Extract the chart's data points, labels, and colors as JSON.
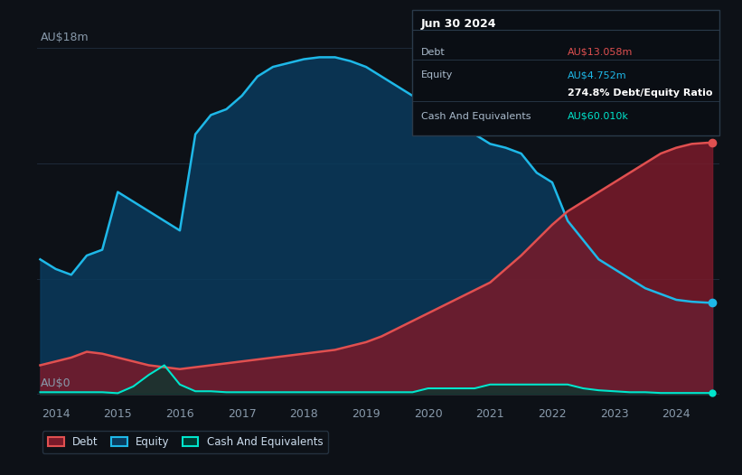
{
  "background_color": "#0d1117",
  "plot_bg_color": "#0d1117",
  "grid_color": "#1e2a3a",
  "title": "Jun 30 2024",
  "ylabel": "AU$18m",
  "y0label": "AU$0",
  "xlim": [
    2013.7,
    2024.7
  ],
  "ylim": [
    -0.5,
    18.5
  ],
  "xticks": [
    2014,
    2015,
    2016,
    2017,
    2018,
    2019,
    2020,
    2021,
    2022,
    2023,
    2024
  ],
  "debt_color": "#e05050",
  "equity_color": "#1eb8e8",
  "cash_color": "#00e5cc",
  "debt_fill": "#7a1a2a",
  "equity_fill": "#0a3a5c",
  "cash_fill": "#003a30",
  "tooltip_bg": "#0a0e14",
  "tooltip_border": "#2a3a4a",
  "debt_label": "Debt",
  "equity_label": "Equity",
  "cash_label": "Cash And Equivalents",
  "debt_value": "AU$13.058m",
  "equity_value": "AU$4.752m",
  "ratio_value": "274.8% Debt/Equity Ratio",
  "cash_value": "AU$60.010k",
  "years": [
    2013.75,
    2014.0,
    2014.25,
    2014.5,
    2014.75,
    2015.0,
    2015.25,
    2015.5,
    2015.75,
    2016.0,
    2016.25,
    2016.5,
    2016.75,
    2017.0,
    2017.25,
    2017.5,
    2017.75,
    2018.0,
    2018.25,
    2018.5,
    2018.75,
    2019.0,
    2019.25,
    2019.5,
    2019.75,
    2020.0,
    2020.25,
    2020.5,
    2020.75,
    2021.0,
    2021.25,
    2021.5,
    2021.75,
    2022.0,
    2022.25,
    2022.5,
    2022.75,
    2023.0,
    2023.25,
    2023.5,
    2023.75,
    2024.0,
    2024.25,
    2024.5,
    2024.58
  ],
  "debt": [
    1.5,
    1.7,
    1.9,
    2.2,
    2.1,
    1.9,
    1.7,
    1.5,
    1.4,
    1.3,
    1.4,
    1.5,
    1.6,
    1.7,
    1.8,
    1.9,
    2.0,
    2.1,
    2.2,
    2.3,
    2.5,
    2.7,
    3.0,
    3.4,
    3.8,
    4.2,
    4.6,
    5.0,
    5.4,
    5.8,
    6.5,
    7.2,
    8.0,
    8.8,
    9.5,
    10.0,
    10.5,
    11.0,
    11.5,
    12.0,
    12.5,
    12.8,
    13.0,
    13.058,
    13.058
  ],
  "equity": [
    7.0,
    6.5,
    6.2,
    7.2,
    7.5,
    10.5,
    10.0,
    9.5,
    9.0,
    8.5,
    13.5,
    14.5,
    14.8,
    15.5,
    16.5,
    17.0,
    17.2,
    17.4,
    17.5,
    17.5,
    17.3,
    17.0,
    16.5,
    16.0,
    15.5,
    15.0,
    14.5,
    14.0,
    13.5,
    13.0,
    12.8,
    12.5,
    11.5,
    11.0,
    9.0,
    8.0,
    7.0,
    6.5,
    6.0,
    5.5,
    5.2,
    4.9,
    4.8,
    4.752,
    4.752
  ],
  "cash": [
    0.1,
    0.1,
    0.1,
    0.1,
    0.1,
    0.05,
    0.4,
    1.0,
    1.5,
    0.5,
    0.15,
    0.15,
    0.1,
    0.1,
    0.1,
    0.1,
    0.1,
    0.1,
    0.1,
    0.1,
    0.1,
    0.1,
    0.1,
    0.1,
    0.1,
    0.3,
    0.3,
    0.3,
    0.3,
    0.5,
    0.5,
    0.5,
    0.5,
    0.5,
    0.5,
    0.3,
    0.2,
    0.15,
    0.1,
    0.1,
    0.06,
    0.06,
    0.06,
    0.06,
    0.06
  ]
}
